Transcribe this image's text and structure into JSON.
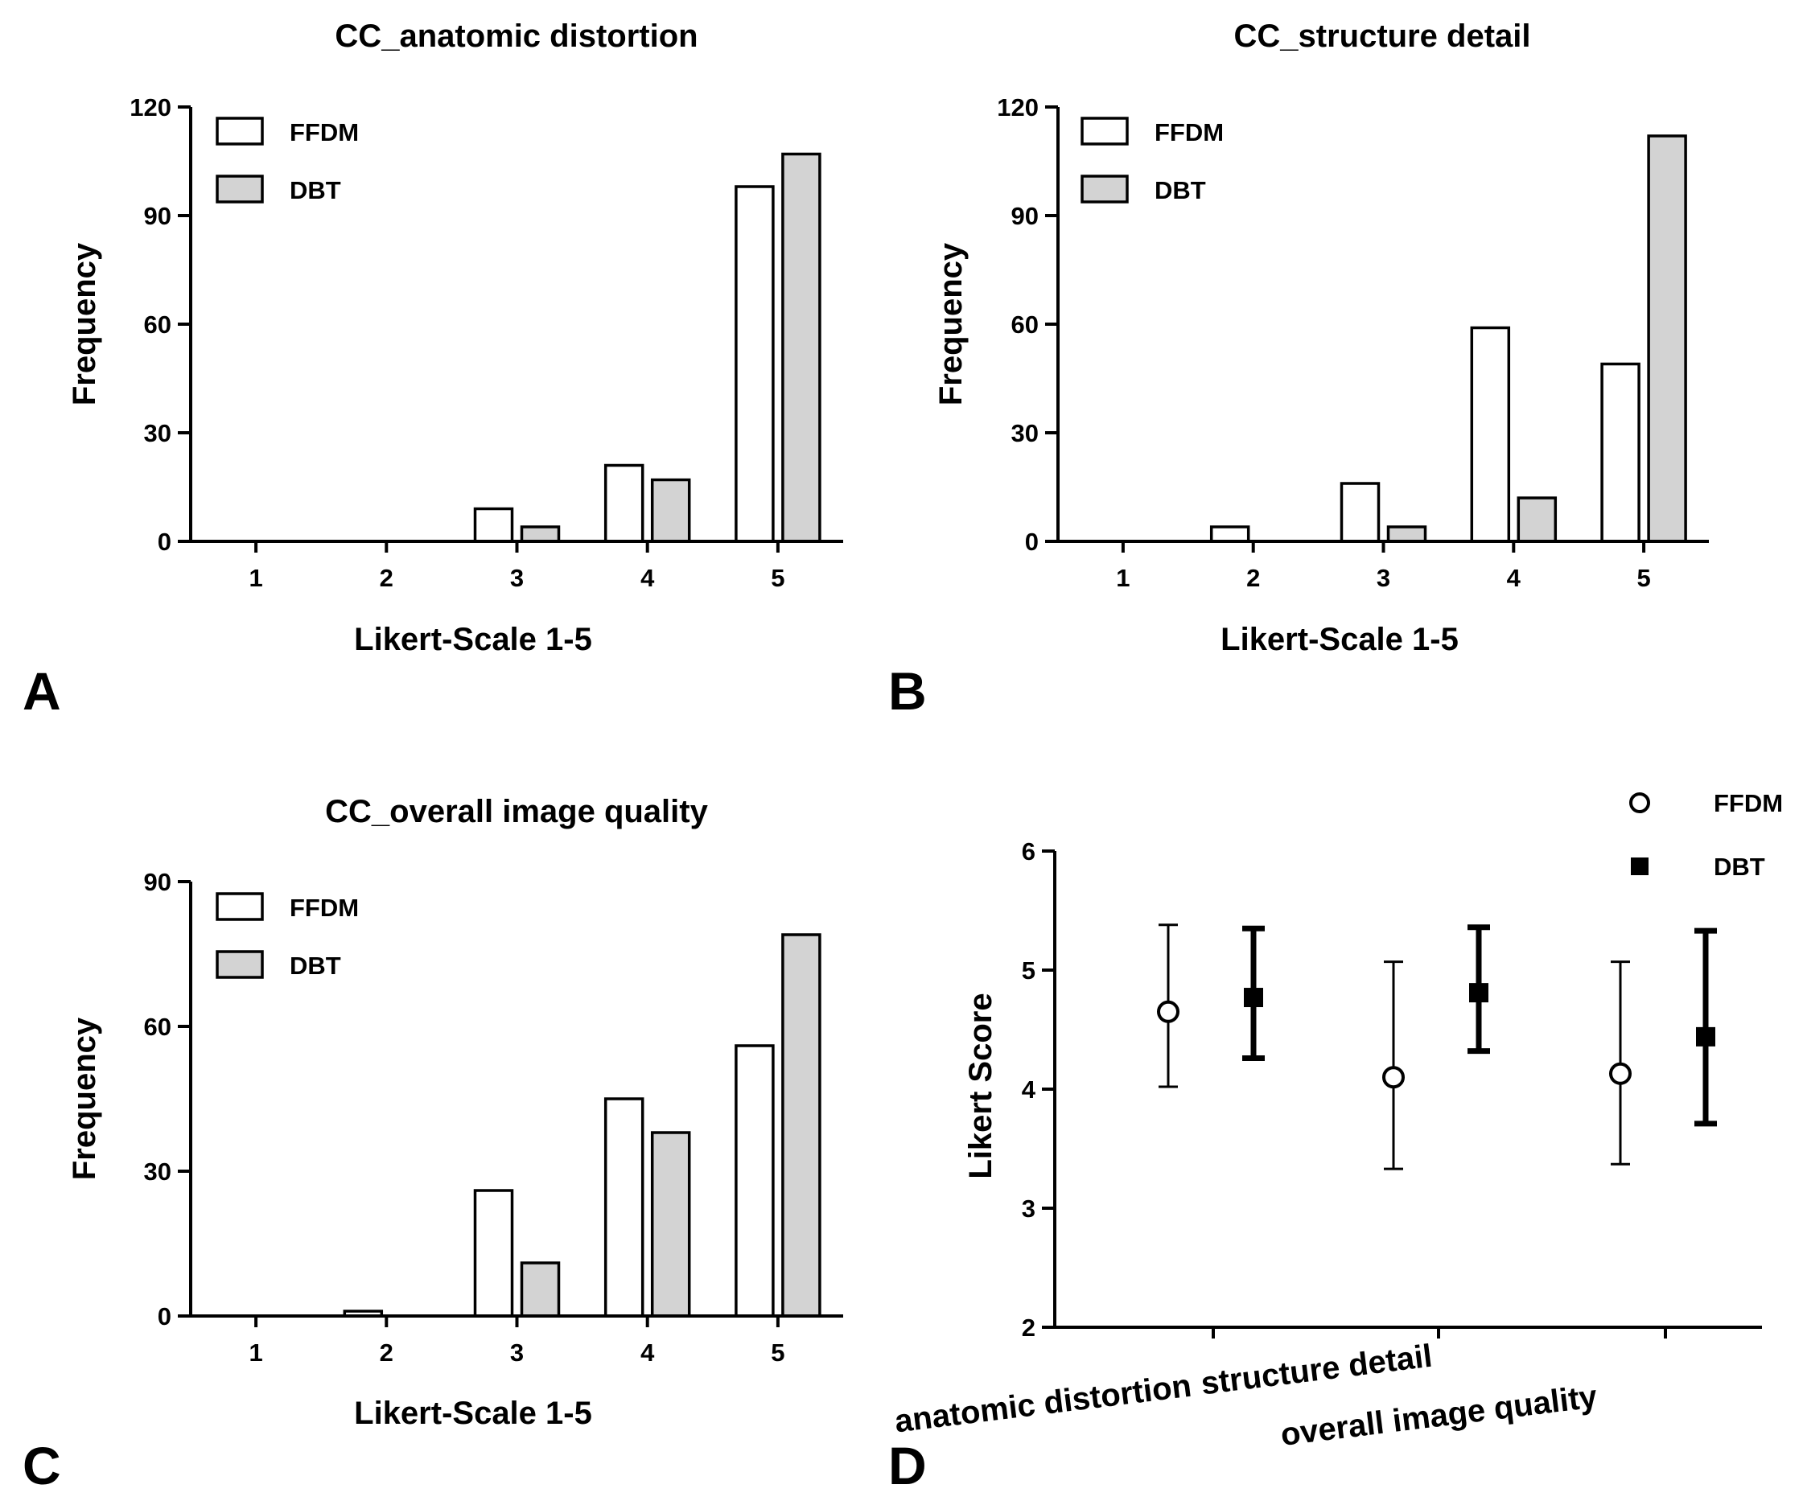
{
  "chart_data": [
    {
      "panel": "A",
      "type": "bar",
      "title": "CC_anatomic distortion",
      "xlabel": "Likert-Scale 1-5",
      "ylabel": "Frequency",
      "categories": [
        "1",
        "2",
        "3",
        "4",
        "5"
      ],
      "ylim": [
        0,
        120
      ],
      "yticks": [
        0,
        30,
        60,
        90,
        120
      ],
      "legend_position": "top-left",
      "series": [
        {
          "name": "FFDM",
          "color": "#ffffff",
          "values": [
            0,
            0,
            9,
            21,
            98
          ]
        },
        {
          "name": "DBT",
          "color": "#d3d3d3",
          "values": [
            0,
            0,
            4,
            17,
            107
          ]
        }
      ]
    },
    {
      "panel": "B",
      "type": "bar",
      "title": "CC_structure detail",
      "xlabel": "Likert-Scale 1-5",
      "ylabel": "Frequency",
      "categories": [
        "1",
        "2",
        "3",
        "4",
        "5"
      ],
      "ylim": [
        0,
        120
      ],
      "yticks": [
        0,
        30,
        60,
        90,
        120
      ],
      "legend_position": "top-left",
      "series": [
        {
          "name": "FFDM",
          "color": "#ffffff",
          "values": [
            0,
            4,
            16,
            59,
            49
          ]
        },
        {
          "name": "DBT",
          "color": "#d3d3d3",
          "values": [
            0,
            0,
            4,
            12,
            112
          ]
        }
      ]
    },
    {
      "panel": "C",
      "type": "bar",
      "title": "CC_overall image quality",
      "xlabel": "Likert-Scale 1-5",
      "ylabel": "Frequency",
      "categories": [
        "1",
        "2",
        "3",
        "4",
        "5"
      ],
      "ylim": [
        0,
        90
      ],
      "yticks": [
        0,
        30,
        60,
        90
      ],
      "legend_position": "top-left",
      "series": [
        {
          "name": "FFDM",
          "color": "#ffffff",
          "values": [
            0,
            1,
            26,
            45,
            56
          ]
        },
        {
          "name": "DBT",
          "color": "#d3d3d3",
          "values": [
            0,
            0,
            11,
            38,
            79
          ]
        }
      ]
    },
    {
      "panel": "D",
      "type": "scatter",
      "title": "",
      "xlabel": "",
      "ylabel": "Likert Score",
      "categories": [
        "anatomic distortion",
        "structure detail",
        "overall image quality"
      ],
      "ylim": [
        2,
        6
      ],
      "yticks": [
        2,
        3,
        4,
        5,
        6
      ],
      "legend_position": "top-right",
      "series": [
        {
          "name": "FFDM",
          "marker": "open-circle",
          "mean": [
            4.65,
            4.1,
            4.13
          ],
          "low": [
            4.02,
            3.33,
            3.37
          ],
          "high": [
            5.38,
            5.07,
            5.07
          ]
        },
        {
          "name": "DBT",
          "marker": "filled-square",
          "mean": [
            4.77,
            4.81,
            4.44
          ],
          "low": [
            4.26,
            4.32,
            3.71
          ],
          "high": [
            5.35,
            5.36,
            5.33
          ]
        }
      ]
    }
  ]
}
